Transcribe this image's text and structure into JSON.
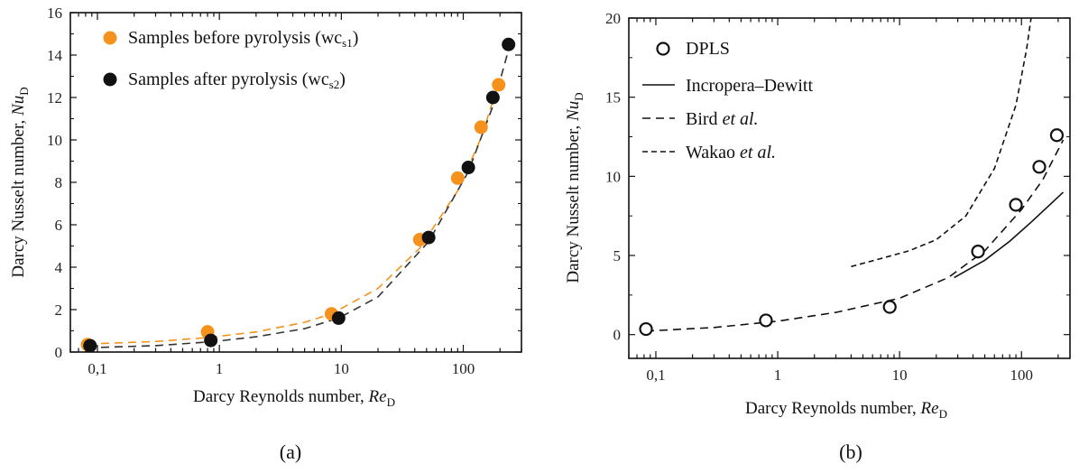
{
  "chart_data": [
    {
      "type": "scatter",
      "panel_label": "(a)",
      "x_scale": "log",
      "x_ticks": [
        0.1,
        1,
        10,
        100
      ],
      "x_tick_labels": [
        "0,1",
        "1",
        "10",
        "100"
      ],
      "xlim": [
        0.06,
        300
      ],
      "ylim": [
        0,
        16
      ],
      "y_ticks": [
        0,
        2,
        4,
        6,
        8,
        10,
        12,
        14,
        16
      ],
      "xlabel": {
        "text": "Darcy Reynolds number, ",
        "italic": "Re",
        "sub": "D"
      },
      "ylabel": {
        "text": "Darcy Nusselt number, ",
        "italic": "Nu",
        "sub": "D"
      },
      "series": [
        {
          "name": "Samples before pyrolysis (wc",
          "name_sub": "s1",
          "name_end": ")",
          "color": "#f5921e",
          "marker": "filled-circle",
          "x": [
            0.083,
            0.8,
            8.3,
            44,
            90,
            140,
            195
          ],
          "y": [
            0.35,
            0.95,
            1.8,
            5.3,
            8.2,
            10.6,
            12.6
          ]
        },
        {
          "name": "Samples after pyrolysis (wc",
          "name_sub": "s2",
          "name_end": ")",
          "color": "#111111",
          "marker": "filled-circle",
          "x": [
            0.087,
            0.85,
            9.5,
            52,
            110,
            175,
            235
          ],
          "y": [
            0.3,
            0.55,
            1.6,
            5.4,
            8.7,
            12.0,
            14.5
          ]
        }
      ],
      "fits": [
        {
          "color": "#f5921e",
          "style": "dashed",
          "x": [
            0.083,
            0.3,
            0.8,
            2,
            5,
            8.3,
            20,
            44,
            90,
            140,
            200
          ],
          "y": [
            0.38,
            0.5,
            0.68,
            0.95,
            1.4,
            1.8,
            3.0,
            4.9,
            7.6,
            10.1,
            12.9
          ]
        },
        {
          "color": "#333333",
          "style": "dashed",
          "x": [
            0.083,
            0.3,
            0.85,
            2,
            5,
            9.5,
            20,
            52,
            110,
            175,
            250
          ],
          "y": [
            0.2,
            0.3,
            0.48,
            0.72,
            1.1,
            1.6,
            2.6,
            5.2,
            8.5,
            11.6,
            14.8
          ]
        }
      ],
      "legend_position": "top-left"
    },
    {
      "type": "scatter",
      "panel_label": "(b)",
      "x_scale": "log",
      "x_ticks": [
        0.1,
        1,
        10,
        100
      ],
      "x_tick_labels": [
        "0,1",
        "1",
        "10",
        "100"
      ],
      "xlim": [
        0.06,
        250
      ],
      "ylim": [
        -1.5,
        20
      ],
      "y_ticks": [
        0,
        5,
        10,
        15,
        20
      ],
      "xlabel": {
        "text": "Darcy Reynolds number, ",
        "italic": "Re",
        "sub": "D"
      },
      "ylabel": {
        "text": "Darcy Nusselt number, ",
        "italic": "Nu",
        "sub": "D"
      },
      "series": [
        {
          "name": "DPLS",
          "marker": "open-circle",
          "color": "#111111",
          "x": [
            0.083,
            0.8,
            8.3,
            44,
            90,
            140,
            195
          ],
          "y": [
            0.35,
            0.9,
            1.75,
            5.25,
            8.2,
            10.6,
            12.6
          ]
        }
      ],
      "lines": [
        {
          "name": "Incropera–Dewitt",
          "name_italic": "",
          "style": "solid",
          "color": "#111111",
          "x": [
            28,
            50,
            80,
            120,
            160,
            220
          ],
          "y": [
            3.6,
            4.7,
            5.9,
            7.1,
            8.0,
            9.0
          ]
        },
        {
          "name": "Bird ",
          "name_italic": "et al.",
          "style": "dashed",
          "color": "#111111",
          "x": [
            0.083,
            0.3,
            1,
            3,
            10,
            25,
            50,
            100,
            150,
            220
          ],
          "y": [
            0.22,
            0.45,
            0.85,
            1.4,
            2.3,
            3.6,
            5.3,
            7.9,
            9.8,
            12.3
          ]
        },
        {
          "name": "Wakao ",
          "name_italic": "et al.",
          "style": "short-dashed",
          "color": "#111111",
          "x": [
            4,
            7,
            12,
            20,
            35,
            60,
            90,
            110,
            120
          ],
          "y": [
            4.3,
            4.8,
            5.3,
            6.0,
            7.5,
            10.5,
            14.5,
            18.0,
            20
          ]
        }
      ],
      "legend_position": "top-left"
    }
  ]
}
